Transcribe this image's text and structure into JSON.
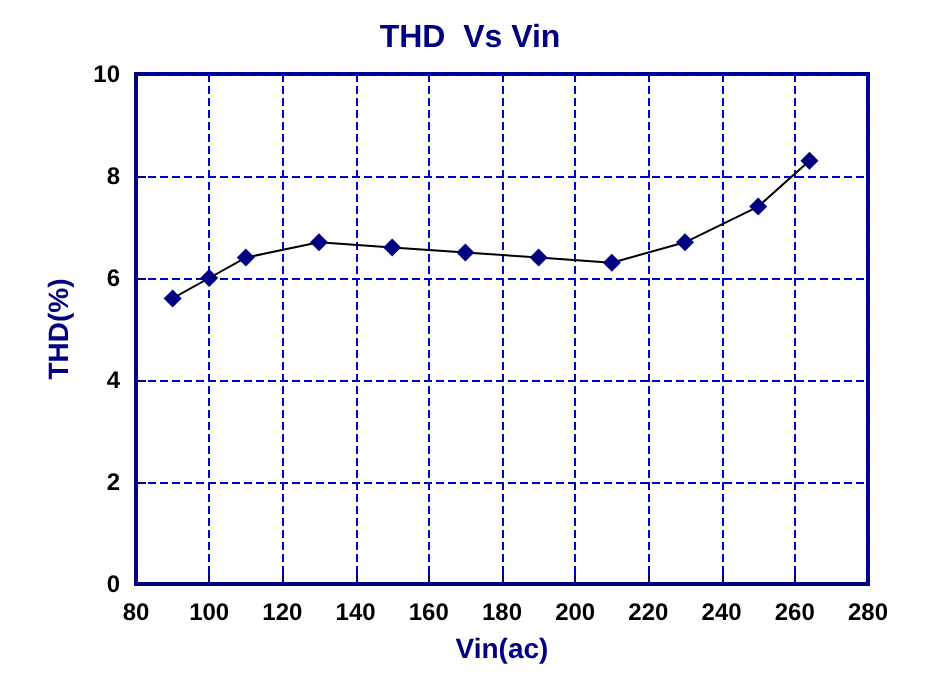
{
  "chart_data": {
    "type": "line",
    "title": "THD  Vs Vin",
    "xlabel": "Vin(ac)",
    "ylabel": "THD(%)",
    "x": [
      90,
      100,
      110,
      130,
      150,
      170,
      190,
      210,
      230,
      250,
      264
    ],
    "series": [
      {
        "color": "#000080",
        "values": [
          5.6,
          6.0,
          6.4,
          6.7,
          6.6,
          6.5,
          6.4,
          6.3,
          6.7,
          7.4,
          8.3
        ]
      }
    ],
    "xlim": [
      80,
      280
    ],
    "xticks": [
      80,
      100,
      120,
      140,
      160,
      180,
      200,
      220,
      240,
      260,
      280
    ],
    "ylim": [
      0,
      10
    ],
    "yticks": [
      0,
      2,
      4,
      6,
      8,
      10
    ],
    "grid": true,
    "marker": "diamond",
    "line_style": "solid"
  }
}
